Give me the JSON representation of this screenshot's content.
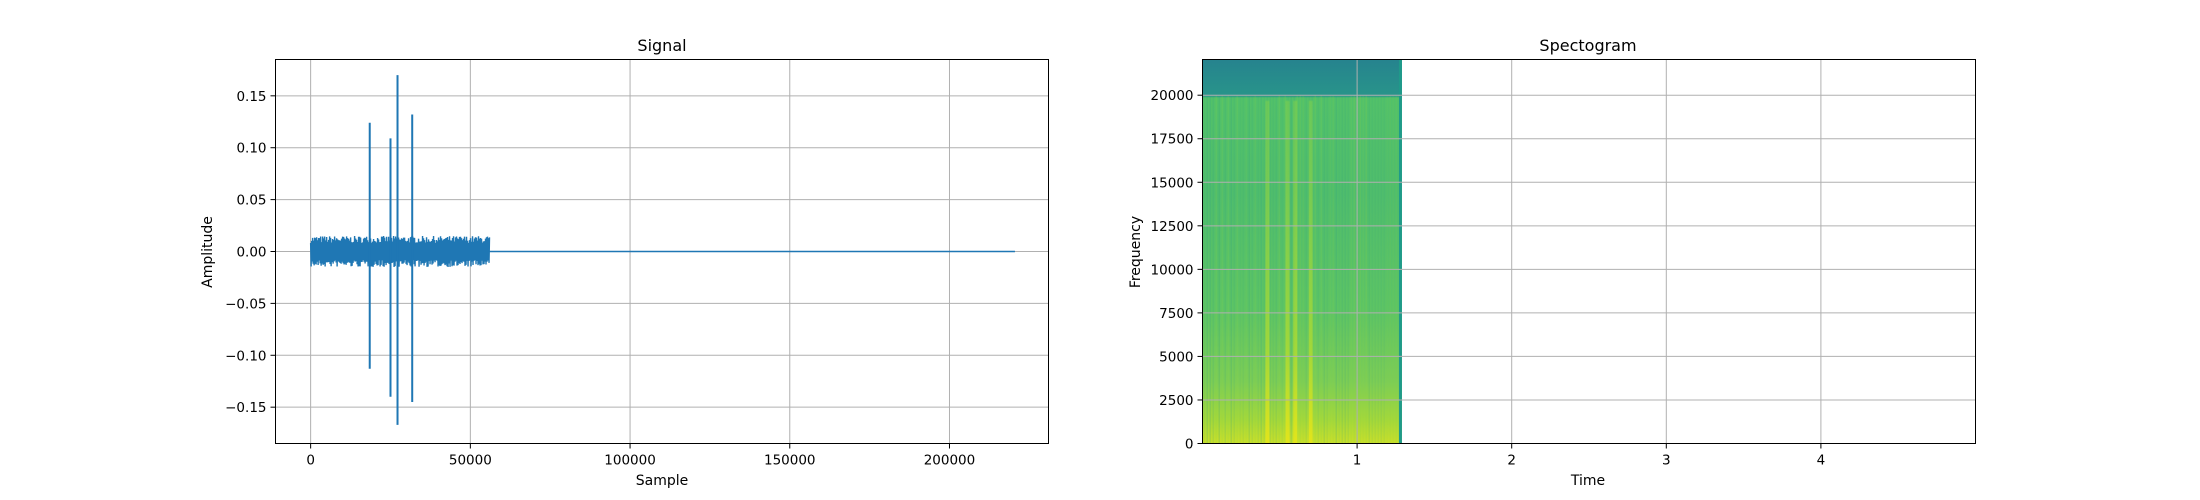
{
  "chart_data": [
    {
      "type": "line",
      "title": "Signal",
      "xlabel": "Sample",
      "ylabel": "Amplitude",
      "xlim": [
        -11000,
        231000
      ],
      "ylim": [
        -0.185,
        0.185
      ],
      "xticks": [
        0,
        50000,
        100000,
        150000,
        200000
      ],
      "xtick_labels": [
        "0",
        "50000",
        "100000",
        "150000",
        "200000"
      ],
      "yticks": [
        -0.15,
        -0.1,
        -0.05,
        0.0,
        0.05,
        0.1,
        0.15
      ],
      "ytick_labels": [
        "−0.15",
        "−0.10",
        "−0.05",
        "0.00",
        "0.05",
        "0.10",
        "0.15"
      ],
      "grid": true,
      "color": "#1f77b4",
      "series": [
        {
          "noise_band": {
            "x_start": 0,
            "x_end": 56000,
            "amplitude": 0.015
          },
          "flat_line": {
            "x_start": 56000,
            "x_end": 220500,
            "y": 0.0
          },
          "spikes": [
            {
              "x": 18500,
              "ymax": 0.124,
              "ymin": -0.113
            },
            {
              "x": 25000,
              "ymax": 0.109,
              "ymin": -0.14
            },
            {
              "x": 27200,
              "ymax": 0.17,
              "ymin": -0.167
            },
            {
              "x": 31800,
              "ymax": 0.132,
              "ymin": -0.145
            }
          ]
        }
      ]
    },
    {
      "type": "heatmap",
      "title": "Spectogram",
      "xlabel": "Time",
      "ylabel": "Frequency",
      "xlim": [
        0,
        5.0
      ],
      "ylim": [
        0,
        22050
      ],
      "xticks": [
        1,
        2,
        3,
        4
      ],
      "xtick_labels": [
        "1",
        "2",
        "3",
        "4"
      ],
      "yticks": [
        0,
        2500,
        5000,
        7500,
        10000,
        12500,
        15000,
        17500,
        20000
      ],
      "ytick_labels": [
        "0",
        "2500",
        "5000",
        "7500",
        "10000",
        "12500",
        "15000",
        "17500",
        "20000"
      ],
      "grid": true,
      "colormap": "viridis",
      "data_region": {
        "t_start": 0,
        "t_end": 1.29
      },
      "cutoff_frequency": 20000,
      "bright_columns_time": [
        0.42,
        0.55,
        0.6,
        0.7
      ]
    }
  ]
}
